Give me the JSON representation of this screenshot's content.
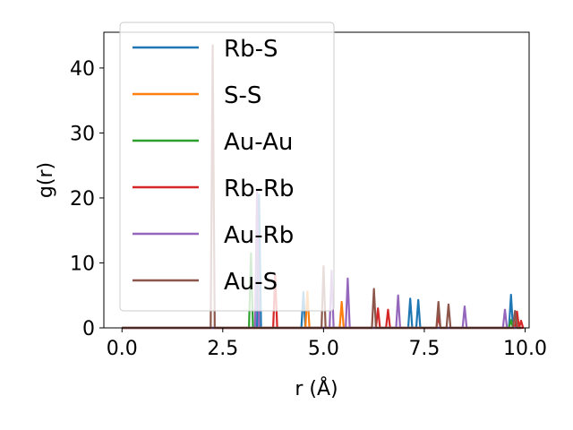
{
  "chart_data": {
    "type": "line",
    "xlabel": "r (Å)",
    "ylabel": "g(r)",
    "xlim": [
      -0.45,
      10.1
    ],
    "ylim": [
      0,
      45.5
    ],
    "xticks": [
      0.0,
      2.5,
      5.0,
      7.5,
      10.0
    ],
    "xtick_labels": [
      "0.0",
      "2.5",
      "5.0",
      "7.5",
      "10.0"
    ],
    "yticks": [
      0,
      10,
      20,
      30,
      40
    ],
    "ytick_labels": [
      "0",
      "10",
      "20",
      "30",
      "40"
    ],
    "grid": false,
    "legend_position": "top-left",
    "peak_half_width": 0.05,
    "series": [
      {
        "name": "Rb-S",
        "color": "#1f77b4",
        "peaks": [
          [
            3.4,
            20.5
          ],
          [
            4.5,
            5.5
          ],
          [
            7.15,
            4.5
          ],
          [
            7.35,
            4.3
          ],
          [
            9.65,
            5.1
          ]
        ]
      },
      {
        "name": "S-S",
        "color": "#ff7f0e",
        "peaks": [
          [
            4.6,
            5.6
          ],
          [
            5.45,
            4.0
          ]
        ]
      },
      {
        "name": "Au-Au",
        "color": "#2ca02c",
        "peaks": [
          [
            3.2,
            11.5
          ],
          [
            9.65,
            1.2
          ]
        ]
      },
      {
        "name": "Rb-Rb",
        "color": "#d62728",
        "peaks": [
          [
            3.8,
            8.1
          ],
          [
            6.35,
            3.0
          ],
          [
            6.6,
            2.8
          ],
          [
            7.85,
            1.8
          ],
          [
            9.8,
            2.5
          ],
          [
            9.9,
            1.1
          ]
        ]
      },
      {
        "name": "Au-Rb",
        "color": "#9467bd",
        "peaks": [
          [
            3.35,
            21.0
          ],
          [
            5.2,
            8.8
          ],
          [
            5.6,
            7.6
          ],
          [
            6.85,
            5.0
          ],
          [
            8.5,
            3.3
          ],
          [
            9.5,
            2.8
          ]
        ]
      },
      {
        "name": "Au-S",
        "color": "#8c564b",
        "peaks": [
          [
            2.25,
            43.5
          ],
          [
            5.0,
            9.5
          ],
          [
            6.25,
            6.0
          ],
          [
            7.85,
            4.0
          ],
          [
            8.1,
            3.6
          ],
          [
            9.75,
            2.6
          ]
        ]
      }
    ]
  }
}
